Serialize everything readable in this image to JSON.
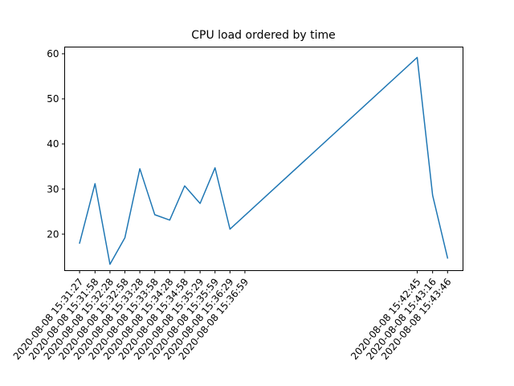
{
  "chart_data": {
    "type": "line",
    "title": "CPU load ordered by time",
    "xlabel": "",
    "ylabel": "",
    "x_scale": "time",
    "x_ticks": [
      "2020-08-08 15:31:27",
      "2020-08-08 15:31:58",
      "2020-08-08 15:32:28",
      "2020-08-08 15:32:58",
      "2020-08-08 15:33:28",
      "2020-08-08 15:33:58",
      "2020-08-08 15:34:28",
      "2020-08-08 15:34:58",
      "2020-08-08 15:35:29",
      "2020-08-08 15:35:59",
      "2020-08-08 15:36:29",
      "2020-08-08 15:36:59",
      "2020-08-08 15:42:45",
      "2020-08-08 15:43:16",
      "2020-08-08 15:43:46"
    ],
    "series": [
      {
        "name": "",
        "color": "#1f77b4",
        "points": [
          {
            "x": "2020-08-08 15:31:27",
            "y": 18.0
          },
          {
            "x": "2020-08-08 15:31:58",
            "y": 31.2
          },
          {
            "x": "2020-08-08 15:32:28",
            "y": 13.3
          },
          {
            "x": "2020-08-08 15:32:58",
            "y": 19.2
          },
          {
            "x": "2020-08-08 15:33:28",
            "y": 34.5
          },
          {
            "x": "2020-08-08 15:33:58",
            "y": 24.3
          },
          {
            "x": "2020-08-08 15:34:28",
            "y": 23.1
          },
          {
            "x": "2020-08-08 15:34:58",
            "y": 30.7
          },
          {
            "x": "2020-08-08 15:35:29",
            "y": 26.8
          },
          {
            "x": "2020-08-08 15:35:59",
            "y": 34.7
          },
          {
            "x": "2020-08-08 15:36:29",
            "y": 21.1
          },
          {
            "x": "2020-08-08 15:42:45",
            "y": 59.2
          },
          {
            "x": "2020-08-08 15:43:16",
            "y": 28.6
          },
          {
            "x": "2020-08-08 15:43:46",
            "y": 14.7
          }
        ]
      }
    ],
    "yticks": [
      20,
      30,
      40,
      50,
      60
    ],
    "ylim": [
      11.9,
      61.5
    ],
    "xlim": [
      "2020-08-08 15:30:57",
      "2020-08-08 15:44:17"
    ],
    "grid": false,
    "legend": "none"
  }
}
